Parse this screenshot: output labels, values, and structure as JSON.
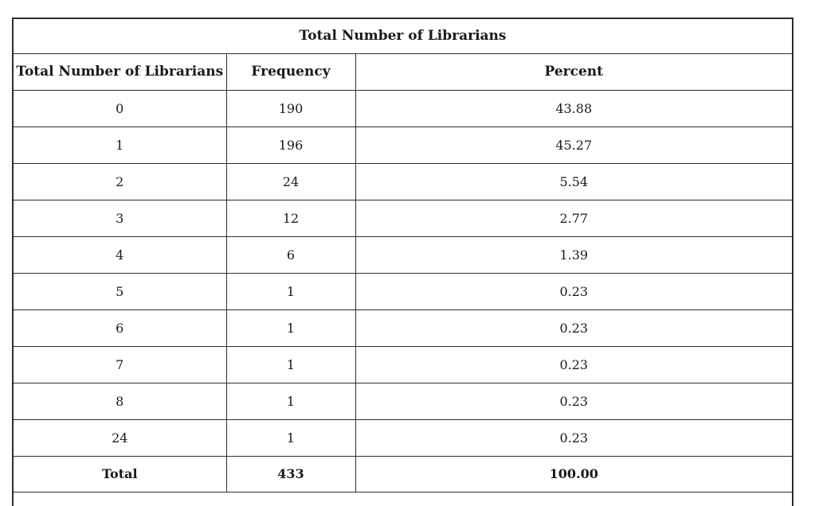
{
  "table": {
    "title": "Total Number of Librarians",
    "columns": [
      "Total Number of Librarians",
      "Frequency",
      "Percent"
    ],
    "rows": [
      [
        "0",
        "190",
        "43.88"
      ],
      [
        "1",
        "196",
        "45.27"
      ],
      [
        "2",
        "24",
        "5.54"
      ],
      [
        "3",
        "12",
        "2.77"
      ],
      [
        "4",
        "6",
        "1.39"
      ],
      [
        "5",
        "1",
        "0.23"
      ],
      [
        "6",
        "1",
        "0.23"
      ],
      [
        "7",
        "1",
        "0.23"
      ],
      [
        "8",
        "1",
        "0.23"
      ],
      [
        "24",
        "1",
        "0.23"
      ]
    ],
    "total_row": [
      "Total",
      "433",
      "100.00"
    ]
  },
  "colors": {
    "border": "#2d2d2d",
    "text": "#1a1a1a",
    "background": "#ffffff"
  },
  "chart_data": {
    "type": "table",
    "title": "Total Number of Librarians",
    "columns": [
      "Total Number of Librarians",
      "Frequency",
      "Percent"
    ],
    "categories": [
      "0",
      "1",
      "2",
      "3",
      "4",
      "5",
      "6",
      "7",
      "8",
      "24"
    ],
    "series": [
      {
        "name": "Frequency",
        "values": [
          190,
          196,
          24,
          12,
          6,
          1,
          1,
          1,
          1,
          1
        ]
      },
      {
        "name": "Percent",
        "values": [
          43.88,
          45.27,
          5.54,
          2.77,
          1.39,
          0.23,
          0.23,
          0.23,
          0.23,
          0.23
        ]
      }
    ],
    "total": {
      "label": "Total",
      "frequency": 433,
      "percent": 100.0
    }
  }
}
